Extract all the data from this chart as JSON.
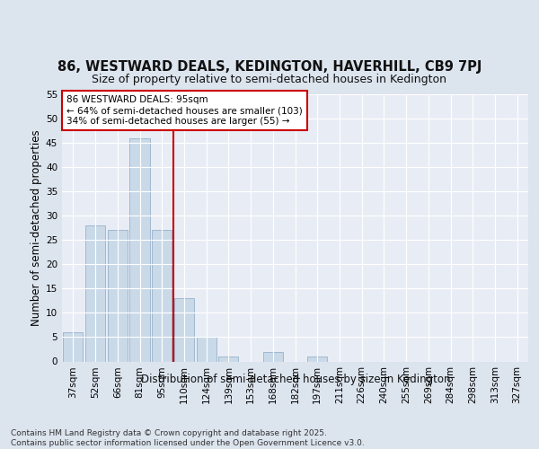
{
  "title": "86, WESTWARD DEALS, KEDINGTON, HAVERHILL, CB9 7PJ",
  "subtitle": "Size of property relative to semi-detached houses in Kedington",
  "xlabel": "Distribution of semi-detached houses by size in Kedington",
  "ylabel": "Number of semi-detached properties",
  "categories": [
    "37sqm",
    "52sqm",
    "66sqm",
    "81sqm",
    "95sqm",
    "110sqm",
    "124sqm",
    "139sqm",
    "153sqm",
    "168sqm",
    "182sqm",
    "197sqm",
    "211sqm",
    "226sqm",
    "240sqm",
    "255sqm",
    "269sqm",
    "284sqm",
    "298sqm",
    "313sqm",
    "327sqm"
  ],
  "values": [
    6,
    28,
    27,
    46,
    27,
    13,
    5,
    1,
    0,
    2,
    0,
    1,
    0,
    0,
    0,
    0,
    0,
    0,
    0,
    0,
    0
  ],
  "bar_color": "#c9d9e8",
  "bar_edgecolor": "#a0b8d0",
  "vline_x_idx": 4,
  "vline_color": "#cc0000",
  "annotation_text": "86 WESTWARD DEALS: 95sqm\n← 64% of semi-detached houses are smaller (103)\n34% of semi-detached houses are larger (55) →",
  "annotation_box_facecolor": "#ffffff",
  "annotation_box_edgecolor": "#cc0000",
  "ylim": [
    0,
    55
  ],
  "yticks": [
    0,
    5,
    10,
    15,
    20,
    25,
    30,
    35,
    40,
    45,
    50,
    55
  ],
  "footer": "Contains HM Land Registry data © Crown copyright and database right 2025.\nContains public sector information licensed under the Open Government Licence v3.0.",
  "bg_color": "#dce4ee",
  "plot_bg_color": "#e8edf5",
  "grid_color": "#ffffff",
  "title_fontsize": 10.5,
  "subtitle_fontsize": 9,
  "axis_label_fontsize": 8.5,
  "tick_fontsize": 7.5,
  "footer_fontsize": 6.5,
  "annotation_fontsize": 7.5
}
